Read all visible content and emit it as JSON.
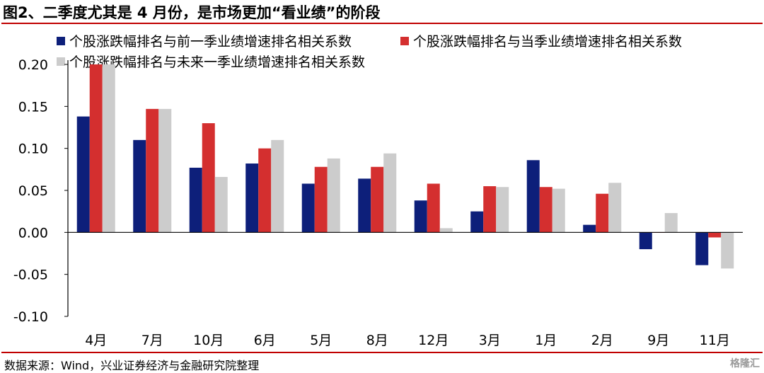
{
  "header": {
    "title": "图2、二季度尤其是 4 月份，是市场更加“看业绩”的阶段"
  },
  "footer": {
    "source": "数据来源：Wind，兴业证券经济与金融研究院整理",
    "watermark": "格隆汇"
  },
  "colors": {
    "rule": "#c00000",
    "series": [
      "#0d1f7a",
      "#d42f2f",
      "#cccccc"
    ]
  },
  "chart_data": {
    "type": "bar",
    "title": "",
    "xlabel": "",
    "ylabel": "",
    "categories": [
      "4月",
      "7月",
      "10月",
      "6月",
      "5月",
      "8月",
      "12月",
      "3月",
      "1月",
      "2月",
      "9月",
      "11月"
    ],
    "series": [
      {
        "name": "个股涨跌幅排名与前一季业绩增速排名相关系数",
        "values": [
          0.138,
          0.11,
          0.077,
          0.082,
          0.058,
          0.064,
          0.038,
          0.025,
          0.086,
          0.009,
          -0.02,
          -0.039
        ]
      },
      {
        "name": "个股涨跌幅排名与当季业绩增速排名相关系数",
        "values": [
          0.2,
          0.147,
          0.13,
          0.1,
          0.078,
          0.078,
          0.058,
          0.055,
          0.054,
          0.046,
          0.0,
          -0.006
        ]
      },
      {
        "name": "个股涨跌幅排名与未来一季业绩增速排名相关系数",
        "values": [
          0.2,
          0.147,
          0.066,
          0.11,
          0.088,
          0.094,
          0.005,
          0.054,
          0.052,
          0.059,
          0.023,
          -0.043
        ]
      }
    ],
    "ylim": [
      -0.1,
      0.2
    ],
    "yticks": [
      "0.20",
      "0.15",
      "0.10",
      "0.05",
      "0.00",
      "-0.05",
      "-0.10"
    ],
    "legend_position": "top",
    "grid": false
  }
}
